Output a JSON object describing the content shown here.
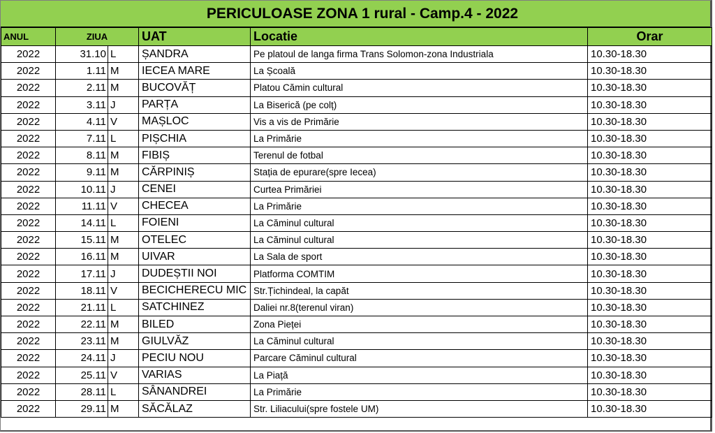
{
  "title": "PERICULOASE ZONA 1 rural - Camp.4 - 2022",
  "headers": {
    "anul": "ANUL",
    "ziua": "ZIUA",
    "uat": "UAT",
    "locatie": "Locatie",
    "orar": "Orar"
  },
  "header_color": "#92d050",
  "rows": [
    {
      "an": "2022",
      "date": "31.10",
      "day": "L",
      "uat": "ȘANDRA",
      "loc": "Pe platoul de langa firma Trans Solomon-zona Industriala",
      "orar": "10.30-18.30"
    },
    {
      "an": "2022",
      "date": "1.11",
      "day": "M",
      "uat": "IECEA MARE",
      "loc": "La Școală",
      "orar": "10.30-18.30"
    },
    {
      "an": "2022",
      "date": "2.11",
      "day": "M",
      "uat": "BUCOVĂȚ",
      "loc": "Platou Cămin cultural",
      "orar": "10.30-18.30"
    },
    {
      "an": "2022",
      "date": "3.11",
      "day": "J",
      "uat": "PARȚA",
      "loc": "La Biserică (pe colț)",
      "orar": "10.30-18.30"
    },
    {
      "an": "2022",
      "date": "4.11",
      "day": "V",
      "uat": "MAȘLOC",
      "loc": "Vis a vis de Primărie",
      "orar": "10.30-18.30"
    },
    {
      "an": "2022",
      "date": "7.11",
      "day": "L",
      "uat": "PIȘCHIA",
      "loc": "La Primărie",
      "orar": "10.30-18.30"
    },
    {
      "an": "2022",
      "date": "8.11",
      "day": "M",
      "uat": "FIBIȘ",
      "loc": "Terenul de fotbal",
      "orar": "10.30-18.30"
    },
    {
      "an": "2022",
      "date": "9.11",
      "day": "M",
      "uat": "CĂRPINIȘ",
      "loc": "Stația de epurare(spre Iecea)",
      "orar": "10.30-18.30"
    },
    {
      "an": "2022",
      "date": "10.11",
      "day": "J",
      "uat": "CENEI",
      "loc": "Curtea Primăriei",
      "orar": "10.30-18.30"
    },
    {
      "an": "2022",
      "date": "11.11",
      "day": "V",
      "uat": "CHECEA",
      "loc": "La Primărie",
      "orar": "10.30-18.30"
    },
    {
      "an": "2022",
      "date": "14.11",
      "day": "L",
      "uat": "FOIENI",
      "loc": "La Căminul cultural",
      "orar": "10.30-18.30"
    },
    {
      "an": "2022",
      "date": "15.11",
      "day": "M",
      "uat": "OTELEC",
      "loc": "La Căminul cultural",
      "orar": "10.30-18.30"
    },
    {
      "an": "2022",
      "date": "16.11",
      "day": "M",
      "uat": "UIVAR",
      "loc": "La Sala de sport",
      "orar": "10.30-18.30"
    },
    {
      "an": "2022",
      "date": "17.11",
      "day": "J",
      "uat": "DUDEȘTII NOI",
      "loc": "Platforma COMTIM",
      "orar": "10.30-18.30"
    },
    {
      "an": "2022",
      "date": "18.11",
      "day": "V",
      "uat": "BECICHERECU MIC",
      "loc": "Str.Țichindeal, la capăt",
      "orar": "10.30-18.30"
    },
    {
      "an": "2022",
      "date": "21.11",
      "day": "L",
      "uat": "SATCHINEZ",
      "loc": "Daliei nr.8(terenul viran)",
      "orar": "10.30-18.30"
    },
    {
      "an": "2022",
      "date": "22.11",
      "day": "M",
      "uat": "BILED",
      "loc": "Zona Pieței",
      "orar": "10.30-18.30"
    },
    {
      "an": "2022",
      "date": "23.11",
      "day": "M",
      "uat": "GIULVĂZ",
      "loc": "La Căminul cultural",
      "orar": "10.30-18.30"
    },
    {
      "an": "2022",
      "date": "24.11",
      "day": "J",
      "uat": "PECIU NOU",
      "loc": "Parcare Căminul cultural",
      "orar": "10.30-18.30"
    },
    {
      "an": "2022",
      "date": "25.11",
      "day": "V",
      "uat": "VARIAS",
      "loc": "La Piață",
      "orar": "10.30-18.30"
    },
    {
      "an": "2022",
      "date": "28.11",
      "day": "L",
      "uat": "SÂNANDREI",
      "loc": "La Primărie",
      "orar": "10.30-18.30"
    },
    {
      "an": "2022",
      "date": "29.11",
      "day": "M",
      "uat": "SĂCĂLAZ",
      "loc": "Str. Liliacului(spre fostele UM)",
      "orar": "10.30-18.30"
    }
  ]
}
